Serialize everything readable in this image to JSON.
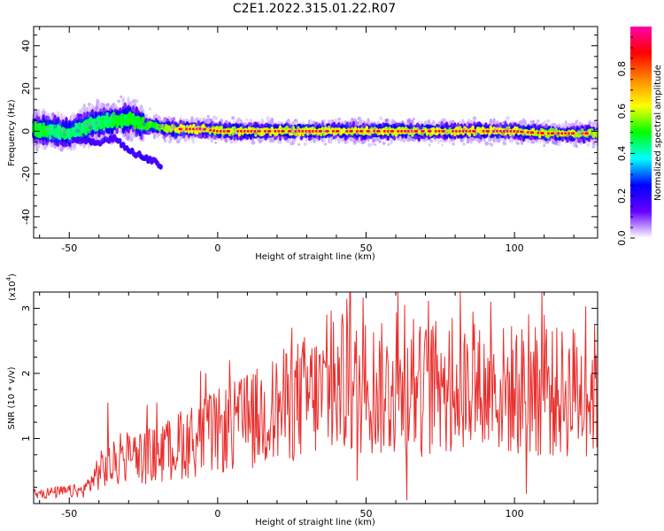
{
  "title": "C2E1.2022.315.01.22.R07",
  "chart_data": [
    {
      "type": "heatmap",
      "xlabel": "Height of straight line (km)",
      "ylabel": "Frequency (Hz)",
      "xlim": [
        -62,
        128
      ],
      "ylim": [
        -50,
        49
      ],
      "xticks": [
        -50,
        0,
        50,
        100
      ],
      "yticks": [
        40,
        20,
        0,
        -20,
        -40
      ],
      "colorbar": {
        "label": "Normalized spectral amplitude",
        "range": [
          0,
          1
        ],
        "ticks": [
          0.0,
          0.2,
          0.4,
          0.6,
          0.8
        ],
        "colors": [
          "#ffffff",
          "#6600ff",
          "#0000ff",
          "#00ffff",
          "#00ff00",
          "#ffff00",
          "#ff8800",
          "#ff0000",
          "#ff00aa"
        ]
      },
      "ridge": [
        {
          "x": -62,
          "f": 1,
          "amp": 0.55
        },
        {
          "x": -55,
          "f": 0,
          "amp": 0.5
        },
        {
          "x": -50,
          "f": -1,
          "amp": 0.5
        },
        {
          "x": -45,
          "f": 2,
          "amp": 0.5
        },
        {
          "x": -40,
          "f": 4,
          "amp": 0.5
        },
        {
          "x": -35,
          "f": 5,
          "amp": 0.55
        },
        {
          "x": -30,
          "f": 6,
          "amp": 0.55
        },
        {
          "x": -25,
          "f": 3,
          "amp": 0.6
        },
        {
          "x": -20,
          "f": 2,
          "amp": 0.65
        },
        {
          "x": -15,
          "f": 1,
          "amp": 0.8
        },
        {
          "x": -10,
          "f": 1,
          "amp": 0.85
        },
        {
          "x": -5,
          "f": 1,
          "amp": 0.85
        },
        {
          "x": 0,
          "f": 0,
          "amp": 0.75
        },
        {
          "x": 10,
          "f": 0,
          "amp": 0.8
        },
        {
          "x": 20,
          "f": 0,
          "amp": 0.8
        },
        {
          "x": 30,
          "f": 0,
          "amp": 0.8
        },
        {
          "x": 40,
          "f": 0,
          "amp": 0.8
        },
        {
          "x": 50,
          "f": 0,
          "amp": 0.8
        },
        {
          "x": 60,
          "f": 0,
          "amp": 0.8
        },
        {
          "x": 70,
          "f": 0,
          "amp": 0.8
        },
        {
          "x": 80,
          "f": 0,
          "amp": 0.8
        },
        {
          "x": 90,
          "f": 0,
          "amp": 0.85
        },
        {
          "x": 100,
          "f": 0,
          "amp": 0.8
        },
        {
          "x": 110,
          "f": -1,
          "amp": 0.75
        },
        {
          "x": 120,
          "f": -1,
          "amp": 0.75
        },
        {
          "x": 128,
          "f": -1,
          "amp": 0.75
        }
      ],
      "branch": [
        {
          "x": -48,
          "f": -4
        },
        {
          "x": -40,
          "f": -5
        },
        {
          "x": -35,
          "f": -3
        },
        {
          "x": -30,
          "f": -9
        },
        {
          "x": -25,
          "f": -12
        },
        {
          "x": -20,
          "f": -15
        },
        {
          "x": -19,
          "f": -16
        }
      ]
    },
    {
      "type": "line",
      "xlabel": "Height of straight line (km)",
      "ylabel": "SNR (10 * v/v)",
      "y_multiplier": "(x10",
      "y_multiplier_exp": "4",
      "y_multiplier_close": ")",
      "xlim": [
        -62,
        128
      ],
      "ylim": [
        0,
        3.25
      ],
      "xticks": [
        -50,
        0,
        50,
        100
      ],
      "yticks": [
        1,
        2,
        3
      ],
      "color": "#e8302e",
      "trend": [
        {
          "x": -62,
          "y": 0.15
        },
        {
          "x": -45,
          "y": 0.2
        },
        {
          "x": -40,
          "y": 0.5
        },
        {
          "x": -30,
          "y": 0.7
        },
        {
          "x": -20,
          "y": 0.75
        },
        {
          "x": -10,
          "y": 0.95
        },
        {
          "x": 0,
          "y": 1.1
        },
        {
          "x": 10,
          "y": 1.25
        },
        {
          "x": 20,
          "y": 1.45
        },
        {
          "x": 30,
          "y": 1.65
        },
        {
          "x": 40,
          "y": 1.7
        },
        {
          "x": 50,
          "y": 1.8
        },
        {
          "x": 60,
          "y": 1.7
        },
        {
          "x": 70,
          "y": 1.75
        },
        {
          "x": 80,
          "y": 1.8
        },
        {
          "x": 90,
          "y": 1.7
        },
        {
          "x": 100,
          "y": 1.75
        },
        {
          "x": 110,
          "y": 1.7
        },
        {
          "x": 120,
          "y": 1.7
        },
        {
          "x": 128,
          "y": 1.75
        }
      ],
      "peaks": [
        {
          "x": 44.6,
          "y": 3.25
        },
        {
          "x": 63,
          "y": 3.05
        },
        {
          "x": 92,
          "y": 3.1
        },
        {
          "x": 86,
          "y": 2.95
        },
        {
          "x": 79,
          "y": 2.85
        },
        {
          "x": 25,
          "y": 2.7
        },
        {
          "x": 110,
          "y": 2.9
        },
        {
          "x": -37,
          "y": 1.55
        },
        {
          "x": 4,
          "y": 2.2
        },
        {
          "x": -4,
          "y": 2.0
        }
      ],
      "troughs": [
        {
          "x": 63.8,
          "y": 0.05
        },
        {
          "x": 104,
          "y": 0.15
        },
        {
          "x": 47,
          "y": 0.35
        }
      ]
    }
  ]
}
